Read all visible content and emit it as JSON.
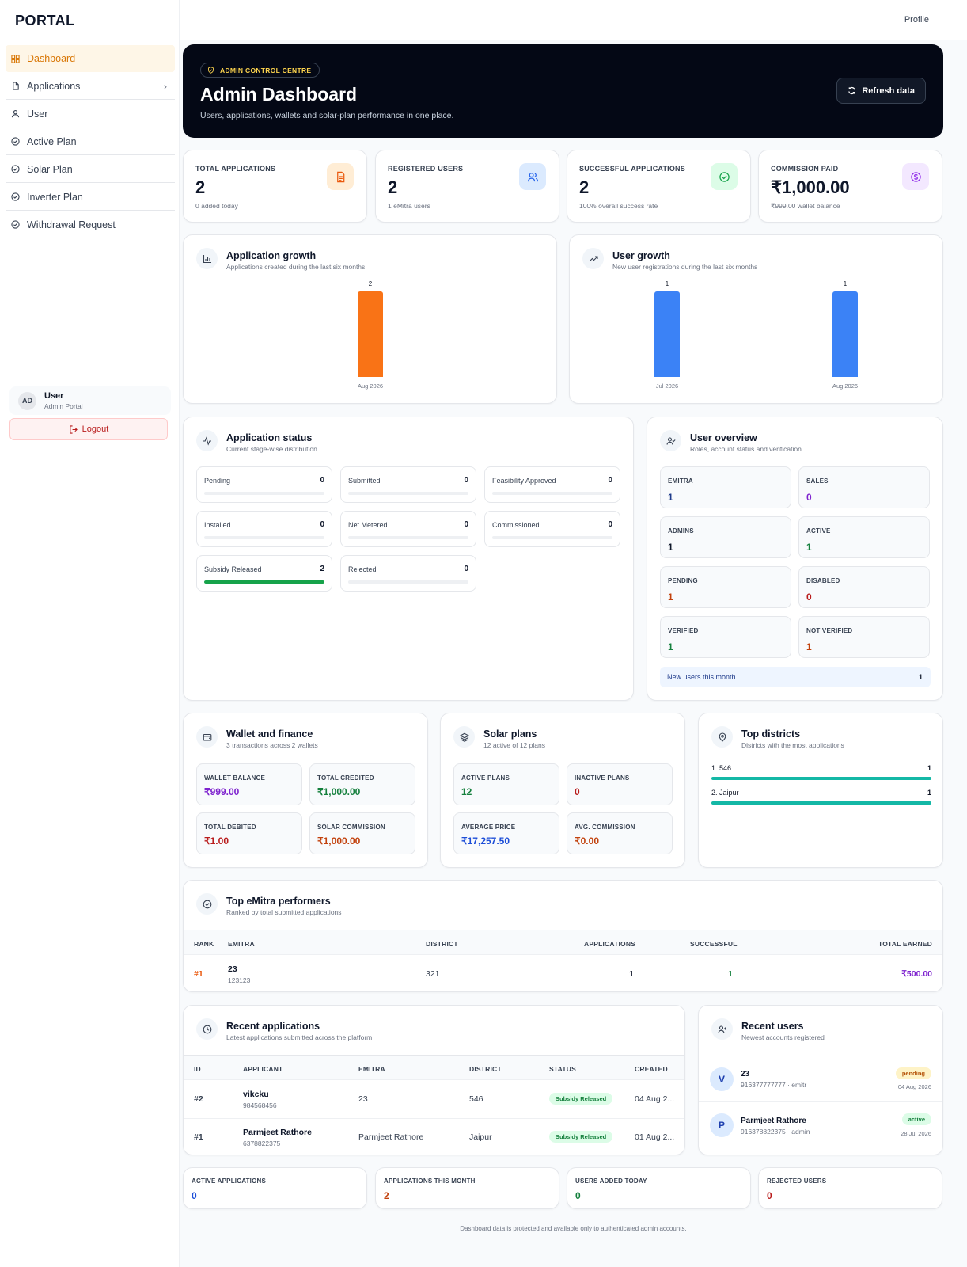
{
  "app": {
    "logo": "PORTAL",
    "profile": "Profile"
  },
  "sidebar": {
    "items": [
      {
        "label": "Dashboard",
        "active": true
      },
      {
        "label": "Applications"
      },
      {
        "label": "User"
      },
      {
        "label": "Active Plan"
      },
      {
        "label": "Solar Plan"
      },
      {
        "label": "Inverter Plan"
      },
      {
        "label": "Withdrawal Request"
      }
    ],
    "user": {
      "initials": "AD",
      "name": "User",
      "role": "Admin Portal"
    },
    "logout": "Logout"
  },
  "hero": {
    "badge": "ADMIN CONTROL CENTRE",
    "title": "Admin Dashboard",
    "subtitle": "Users, applications, wallets and solar-plan performance in one place.",
    "refresh": "Refresh data"
  },
  "stats": [
    {
      "label": "TOTAL APPLICATIONS",
      "value": "2",
      "sub": "0 added today"
    },
    {
      "label": "REGISTERED USERS",
      "value": "2",
      "sub": "1 eMitra users"
    },
    {
      "label": "SUCCESSFUL APPLICATIONS",
      "value": "2",
      "sub": "100% overall success rate"
    },
    {
      "label": "COMMISSION PAID",
      "value": "₹1,000.00",
      "sub": "₹999.00 wallet balance"
    }
  ],
  "app_growth": {
    "title": "Application growth",
    "subtitle": "Applications created during the last six months"
  },
  "user_growth": {
    "title": "User growth",
    "subtitle": "New user registrations during the last six months"
  },
  "chart_data": [
    {
      "type": "bar",
      "categories": [
        "Aug 2026"
      ],
      "values": [
        2
      ],
      "title": "Application growth",
      "ylim": [
        0,
        2
      ],
      "color": "#f97316"
    },
    {
      "type": "bar",
      "categories": [
        "Jul 2026",
        "Aug 2026"
      ],
      "values": [
        1,
        1
      ],
      "title": "User growth",
      "ylim": [
        0,
        1
      ],
      "color": "#3b82f6"
    }
  ],
  "app_status": {
    "title": "Application status",
    "subtitle": "Current stage-wise distribution",
    "items": [
      {
        "name": "Pending",
        "count": "0",
        "fill": 0
      },
      {
        "name": "Submitted",
        "count": "0",
        "fill": 0
      },
      {
        "name": "Feasibility Approved",
        "count": "0",
        "fill": 0
      },
      {
        "name": "Installed",
        "count": "0",
        "fill": 0
      },
      {
        "name": "Net Metered",
        "count": "0",
        "fill": 0
      },
      {
        "name": "Commissioned",
        "count": "0",
        "fill": 0
      },
      {
        "name": "Subsidy Released",
        "count": "2",
        "fill": 1
      },
      {
        "name": "Rejected",
        "count": "0",
        "fill": 0
      }
    ]
  },
  "user_overview": {
    "title": "User overview",
    "subtitle": "Roles, account status and verification",
    "items": [
      {
        "k": "EMITRA",
        "v": "1",
        "color": "#1e3a8a"
      },
      {
        "k": "SALES",
        "v": "0",
        "color": "#7e22ce"
      },
      {
        "k": "ADMINS",
        "v": "1",
        "color": "#0f172a"
      },
      {
        "k": "ACTIVE",
        "v": "1",
        "color": "#15803d"
      },
      {
        "k": "PENDING",
        "v": "1",
        "color": "#c2410c"
      },
      {
        "k": "DISABLED",
        "v": "0",
        "color": "#b91c1c"
      },
      {
        "k": "VERIFIED",
        "v": "1",
        "color": "#15803d"
      },
      {
        "k": "NOT VERIFIED",
        "v": "1",
        "color": "#c2410c"
      }
    ],
    "new_users_label": "New users this month",
    "new_users_value": "1"
  },
  "wallet": {
    "title": "Wallet and finance",
    "subtitle": "3 transactions across 2 wallets",
    "items": [
      {
        "k": "WALLET BALANCE",
        "v": "₹999.00",
        "color": "#7e22ce"
      },
      {
        "k": "TOTAL CREDITED",
        "v": "₹1,000.00",
        "color": "#15803d"
      },
      {
        "k": "TOTAL DEBITED",
        "v": "₹1.00",
        "color": "#b91c1c"
      },
      {
        "k": "SOLAR COMMISSION",
        "v": "₹1,000.00",
        "color": "#c2410c"
      }
    ]
  },
  "solar": {
    "title": "Solar plans",
    "subtitle": "12 active of 12 plans",
    "items": [
      {
        "k": "ACTIVE PLANS",
        "v": "12",
        "color": "#15803d"
      },
      {
        "k": "INACTIVE PLANS",
        "v": "0",
        "color": "#b91c1c"
      },
      {
        "k": "AVERAGE PRICE",
        "v": "₹17,257.50",
        "color": "#1d4ed8"
      },
      {
        "k": "AVG. COMMISSION",
        "v": "₹0.00",
        "color": "#c2410c"
      }
    ]
  },
  "districts": {
    "title": "Top districts",
    "subtitle": "Districts with the most applications",
    "items": [
      {
        "name": "1. 546",
        "count": "1",
        "fill": 1
      },
      {
        "name": "2. Jaipur",
        "count": "1",
        "fill": 1
      }
    ]
  },
  "performers": {
    "title": "Top eMitra performers",
    "subtitle": "Ranked by total submitted applications",
    "cols": [
      "RANK",
      "EMITRA",
      "DISTRICT",
      "APPLICATIONS",
      "SUCCESSFUL",
      "TOTAL EARNED"
    ],
    "rows": [
      {
        "rank": "#1",
        "name": "23",
        "id": "123123",
        "district": "321",
        "apps": "1",
        "success": "1",
        "earned": "₹500.00"
      }
    ]
  },
  "recent_apps": {
    "title": "Recent applications",
    "subtitle": "Latest applications submitted across the platform",
    "cols": [
      "ID",
      "APPLICANT",
      "EMITRA",
      "DISTRICT",
      "STATUS",
      "CREATED"
    ],
    "rows": [
      {
        "id": "#2",
        "name": "vikcku",
        "phone": "984568456",
        "emitra": "23",
        "district": "546",
        "status": "Subsidy Released",
        "created": "04 Aug 2..."
      },
      {
        "id": "#1",
        "name": "Parmjeet Rathore",
        "phone": "6378822375",
        "emitra": "Parmjeet Rathore",
        "district": "Jaipur",
        "status": "Subsidy Released",
        "created": "01 Aug 2..."
      }
    ]
  },
  "recent_users": {
    "title": "Recent users",
    "subtitle": "Newest accounts registered",
    "rows": [
      {
        "initial": "V",
        "name": "23",
        "meta": "916377777777 · emitr",
        "status": "pending",
        "date": "04 Aug 2026"
      },
      {
        "initial": "P",
        "name": "Parmjeet Rathore",
        "meta": "916378822375 · admin",
        "status": "active",
        "date": "28 Jul 2026"
      }
    ]
  },
  "bottom_stats": [
    {
      "k": "ACTIVE APPLICATIONS",
      "v": "0",
      "color": "#1d4ed8"
    },
    {
      "k": "APPLICATIONS THIS MONTH",
      "v": "2",
      "color": "#c2410c"
    },
    {
      "k": "USERS ADDED TODAY",
      "v": "0",
      "color": "#15803d"
    },
    {
      "k": "REJECTED USERS",
      "v": "0",
      "color": "#b91c1c"
    }
  ],
  "footer": "Dashboard data is protected and available only to authenticated admin accounts."
}
